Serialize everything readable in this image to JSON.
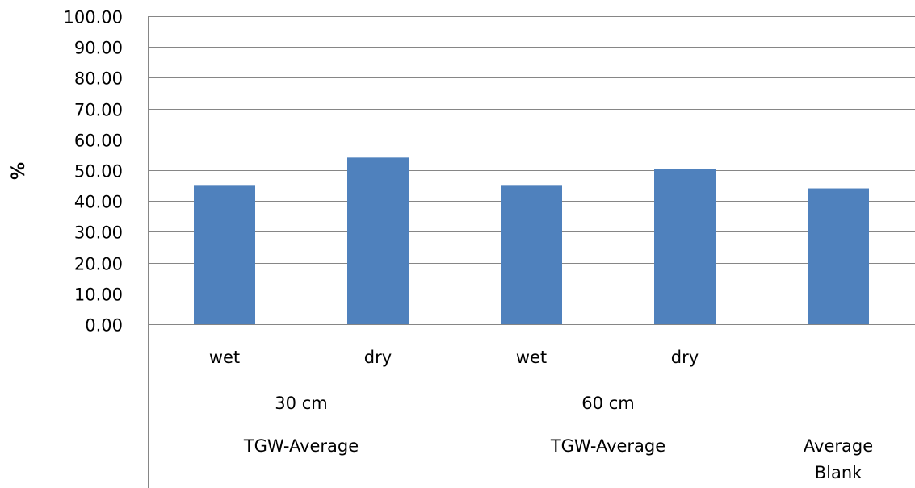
{
  "chart_data": {
    "type": "bar",
    "title": "",
    "xlabel": "",
    "ylabel": "%",
    "ylim": [
      0,
      100
    ],
    "yticks": [
      "0.00",
      "10.00",
      "20.00",
      "30.00",
      "40.00",
      "50.00",
      "60.00",
      "70.00",
      "80.00",
      "90.00",
      "100.00"
    ],
    "grid": true,
    "legend": "none",
    "bar_color": "#4f81bd",
    "categories": [
      {
        "level1": "wet",
        "level2": "30 cm",
        "level3": "TGW-Average"
      },
      {
        "level1": "dry",
        "level2": "30 cm",
        "level3": "TGW-Average"
      },
      {
        "level1": "wet",
        "level2": "60 cm",
        "level3": "TGW-Average"
      },
      {
        "level1": "dry",
        "level2": "60 cm",
        "level3": "TGW-Average"
      },
      {
        "level1": "",
        "level2": "",
        "level3": "Average Blank"
      }
    ],
    "category_groups": {
      "level2": [
        "30 cm",
        "60 cm",
        ""
      ],
      "level3": [
        "TGW-Average",
        "TGW-Average",
        "Average Blank"
      ]
    },
    "values": [
      45.2,
      54.1,
      45.2,
      50.4,
      44.1
    ]
  }
}
